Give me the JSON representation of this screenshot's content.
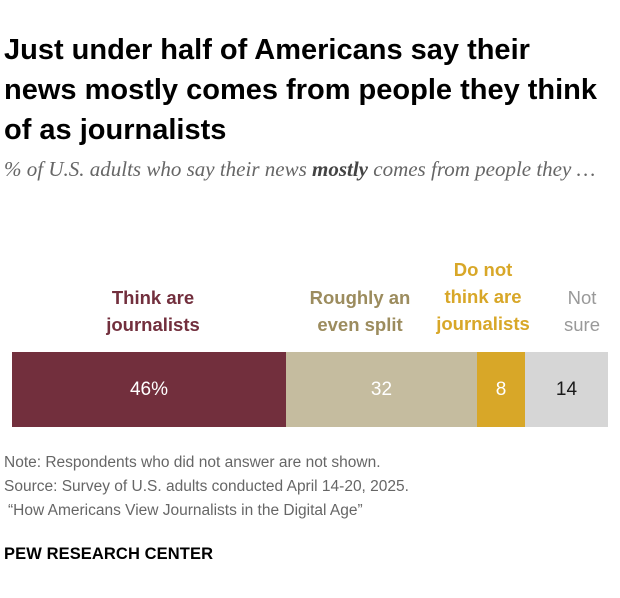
{
  "chart_data": {
    "type": "bar",
    "orientation": "horizontal-stacked",
    "title": "Just under half of Americans say their news mostly comes from people they think of as journalists",
    "subtitle_parts": [
      "% of U.S. adults who say their news ",
      "mostly",
      " comes from people they …"
    ],
    "categories": [
      "Think are journalists",
      "Roughly an even split",
      "Do not think are journalists",
      "Not sure"
    ],
    "values": [
      46,
      32,
      8,
      14
    ],
    "value_labels": [
      "46%",
      "32",
      "8",
      "14"
    ],
    "colors": [
      "#722f3d",
      "#c5bc9f",
      "#d8a728",
      "#d6d6d6"
    ],
    "label_colors": [
      "#ffffff",
      "#ffffff",
      "#ffffff",
      "#1a1a1a"
    ],
    "legend_colors": [
      "#722f3d",
      "#9c8c5e",
      "#d8a728",
      "#999999"
    ],
    "xlim": [
      0,
      100
    ]
  },
  "legend": {
    "think_are": [
      "Think are",
      "journalists"
    ],
    "even_split": [
      "Roughly an",
      "even split"
    ],
    "do_not_think": [
      "Do not",
      "think are",
      "journalists"
    ],
    "not_sure": [
      "Not",
      "sure"
    ]
  },
  "notes": {
    "note": "Note: Respondents who did not answer are not shown.",
    "source": "Source: Survey of U.S. adults conducted April 14-20, 2025.",
    "report": "“How Americans View Journalists in the Digital Age”"
  },
  "brand": "PEW RESEARCH CENTER"
}
